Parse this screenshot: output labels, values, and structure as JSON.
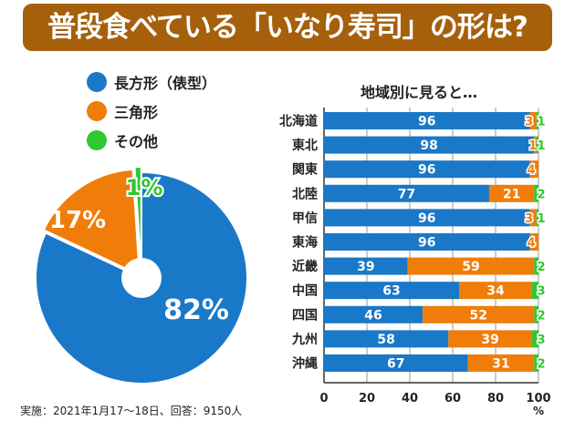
{
  "title": "普段食べている「いなり寿司」の形は?",
  "note": "実施：2021年1月17～18日、回答：9150人",
  "colors": {
    "title_bg": "#a6600c",
    "blue": "#1a78c8",
    "orange": "#f07d0a",
    "green": "#2fc82f"
  },
  "chart_data": [
    {
      "type": "pie",
      "legend": [
        "長方形（俵型）",
        "三角形",
        "その他"
      ],
      "legend_placement": "top",
      "values": [
        82,
        17,
        1
      ],
      "labels": [
        "82%",
        "17%",
        "1%"
      ]
    },
    {
      "type": "bar",
      "stacked": true,
      "orientation": "horizontal",
      "title": "地域別に見ると…",
      "categories": [
        "北海道",
        "東北",
        "関東",
        "北陸",
        "甲信",
        "東海",
        "近畿",
        "中国",
        "四国",
        "九州",
        "沖縄"
      ],
      "series": [
        {
          "name": "長方形（俵型）",
          "values": [
            96,
            98,
            96,
            77,
            96,
            96,
            39,
            63,
            46,
            58,
            67
          ]
        },
        {
          "name": "三角形",
          "values": [
            3,
            1,
            4,
            21,
            3,
            4,
            59,
            34,
            52,
            39,
            31
          ]
        },
        {
          "name": "その他",
          "values": [
            1,
            1,
            0,
            2,
            1,
            0,
            2,
            3,
            2,
            3,
            2
          ]
        }
      ],
      "xlim": [
        0,
        100
      ],
      "xticks": [
        0,
        20,
        40,
        60,
        80,
        100
      ],
      "xunit": "%"
    }
  ]
}
